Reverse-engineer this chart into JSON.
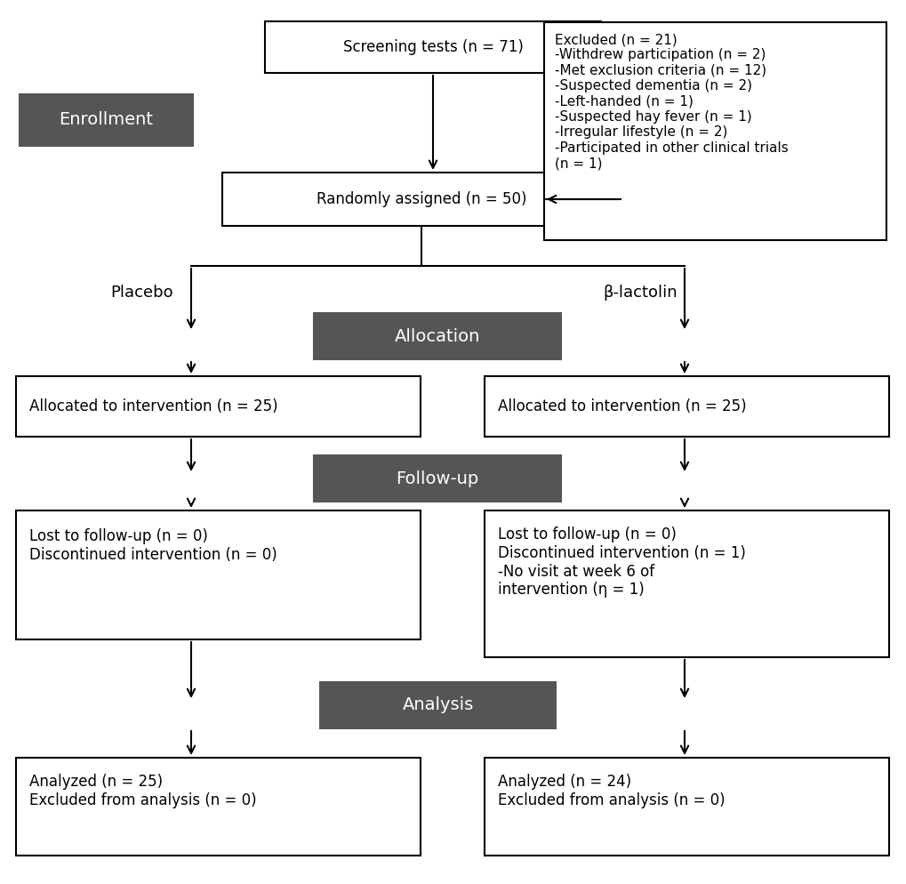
{
  "bg_color": "#ffffff",
  "dark_box_color": "#555555",
  "dark_box_text_color": "#ffffff",
  "light_box_edge_color": "#000000",
  "light_box_color": "#ffffff",
  "arrow_color": "#000000",
  "enrollment_label": "Enrollment",
  "screening_text": "Screening tests (n = 71)",
  "randomly_text": "Randomly assigned (n = 50)",
  "excluded_text": "Excluded (n = 21)\n-Withdrew participation (n = 2)\n-Met exclusion criteria (n = 12)\n-Suspected dementia (n = 2)\n-Left-handed (n = 1)\n-Suspected hay fever (n = 1)\n-Irregular lifestyle (n = 2)\n-Participated in other clinical trials\n(n = 1)",
  "allocation_label": "Allocation",
  "placebo_label": "Placebo",
  "beta_label": "β-lactolin",
  "alloc_left_text": "Allocated to intervention (n = 25)",
  "alloc_right_text": "Allocated to intervention (n = 25)",
  "followup_label": "Follow-up",
  "followup_left_text": "Lost to follow-up (n = 0)\nDiscontinued intervention (n = 0)",
  "followup_right_text": "Lost to follow-up (n = 0)\nDiscontinued intervention (n = 1)\n-No visit at week 6 of\nintervention (η = 1)",
  "analysis_label": "Analysis",
  "analysis_left_text": "Analyzed (n = 25)\nExcluded from analysis (n = 0)",
  "analysis_right_text": "Analyzed (n = 24)\nExcluded from analysis (n = 0)",
  "font_size_main": 12,
  "font_size_excluded": 11,
  "font_size_label": 14
}
